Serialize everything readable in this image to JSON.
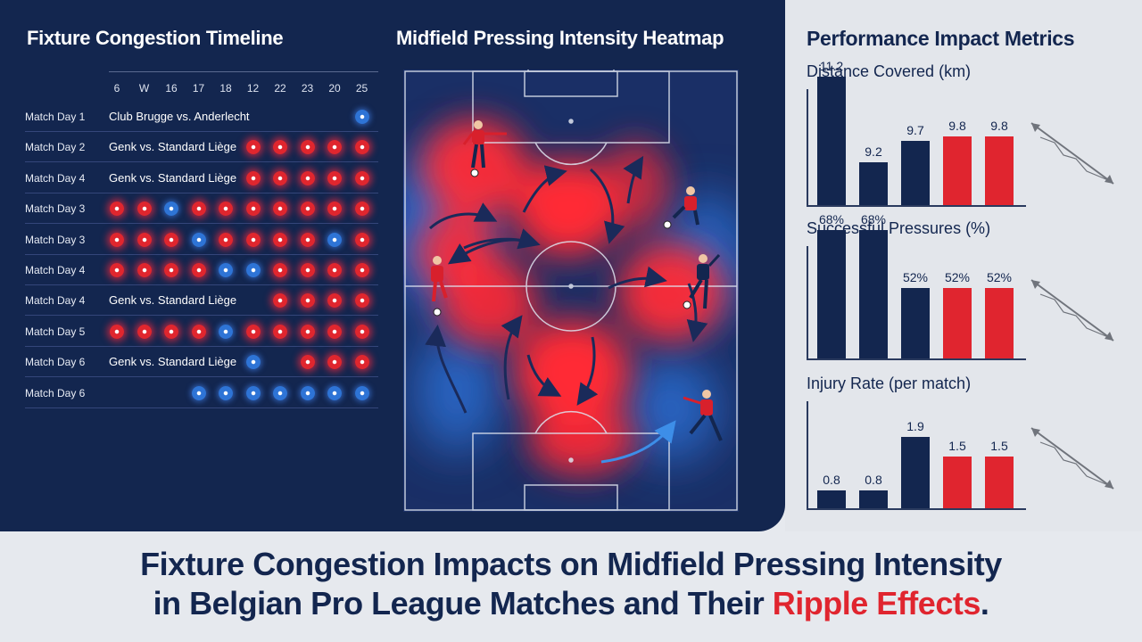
{
  "titles": {
    "left": "Fixture Congestion Timeline",
    "middle": "Midfield Pressing Intensity Heatmap",
    "right": "Performance Impact Metrics"
  },
  "timeline": {
    "columns": [
      "6",
      "W",
      "16",
      "17",
      "18",
      "12",
      "22",
      "23",
      "20",
      "25"
    ],
    "rows": [
      {
        "label": "Match Day 1",
        "fixture": "Club Brugge vs. Anderlecht",
        "balls": [
          "",
          "",
          "",
          "",
          "",
          "",
          "",
          "",
          "",
          "b"
        ]
      },
      {
        "label": "Match Day 2",
        "fixture": "Genk vs. Standard Liège",
        "balls": [
          "",
          "",
          "",
          "",
          "",
          "r",
          "r",
          "r",
          "r",
          "r"
        ]
      },
      {
        "label": "Match Day 4",
        "fixture": "Genk vs. Standard Liège",
        "balls": [
          "",
          "",
          "",
          "",
          "",
          "r",
          "r",
          "r",
          "r",
          "r"
        ]
      },
      {
        "label": "Match Day 3",
        "fixture": "",
        "balls": [
          "r",
          "r",
          "b",
          "r",
          "r",
          "r",
          "r",
          "r",
          "r",
          "r"
        ]
      },
      {
        "label": "Match Day 3",
        "fixture": "",
        "balls": [
          "r",
          "r",
          "r",
          "b",
          "r",
          "r",
          "r",
          "r",
          "b",
          "r"
        ]
      },
      {
        "label": "Match Day 4",
        "fixture": "",
        "balls": [
          "r",
          "r",
          "r",
          "r",
          "b",
          "b",
          "r",
          "r",
          "r",
          "r"
        ]
      },
      {
        "label": "Match Day 4",
        "fixture": "Genk vs. Standard Liège",
        "balls": [
          "",
          "",
          "",
          "",
          "",
          "",
          "r",
          "r",
          "r",
          "r"
        ]
      },
      {
        "label": "Match Day 5",
        "fixture": "",
        "balls": [
          "r",
          "r",
          "r",
          "r",
          "b",
          "r",
          "r",
          "r",
          "r",
          "r"
        ]
      },
      {
        "label": "Match Day 6",
        "fixture": "Genk vs. Standard Liège",
        "balls": [
          "",
          "",
          "",
          "",
          "",
          "b",
          "",
          "r",
          "r",
          "r"
        ]
      },
      {
        "label": "Match Day 6",
        "fixture": "",
        "balls": [
          "",
          "",
          "",
          "b",
          "b",
          "b",
          "b",
          "b",
          "b",
          "b"
        ]
      }
    ]
  },
  "metrics": [
    {
      "title": "Distance Covered (km)",
      "values": [
        "11.2",
        "9.2",
        "9.7",
        "9.8",
        "9.8"
      ],
      "levels": [
        11.2,
        9.2,
        9.7,
        9.8,
        9.8
      ],
      "colors": [
        "navy",
        "navy",
        "navy",
        "red",
        "red"
      ]
    },
    {
      "title": "Successful Pressures (%)",
      "values": [
        "68%",
        "68%",
        "52%",
        "52%",
        "52%"
      ],
      "levels": [
        68,
        68,
        52,
        52,
        52
      ],
      "colors": [
        "navy",
        "navy",
        "navy",
        "red",
        "red"
      ]
    },
    {
      "title": "Injury Rate (per match)",
      "values": [
        "0.8",
        "0.8",
        "1.9",
        "1.5",
        "1.5"
      ],
      "levels": [
        0.8,
        0.8,
        1.9,
        1.5,
        1.5
      ],
      "colors": [
        "navy",
        "navy",
        "navy",
        "red",
        "red"
      ]
    }
  ],
  "headline": {
    "line1": "Fixture Congestion Impacts on Midfield Pressing Intensity",
    "line2_main": "in Belgian Pro League Matches and Their ",
    "line2_highlight": "Ripple Effects",
    "line2_end": "."
  },
  "colors": {
    "navy": "#13264f",
    "red": "#e0252f",
    "blue": "#2e74d6",
    "panel": "#e3e6eb"
  }
}
